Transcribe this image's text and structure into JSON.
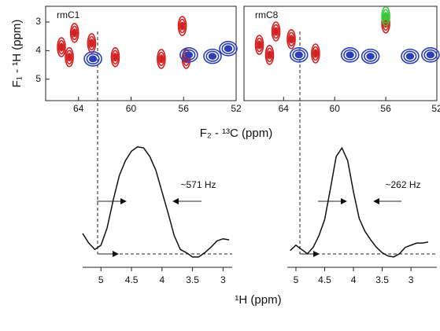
{
  "chart_data": [
    {
      "type": "contour",
      "title": "rmC1",
      "y_label": "F₁ - ¹H  (ppm)",
      "x_label": "F₂ - ¹³C  (ppm)",
      "xlim": [
        66.5,
        52
      ],
      "xticks": [
        64,
        60,
        56,
        52
      ],
      "ylim": [
        5.75,
        2.45
      ],
      "yticks": [
        3,
        4,
        5
      ],
      "series": [
        {
          "color": "#d42020",
          "x": [
            65.3,
            64.7,
            64.3,
            63.0,
            61.2,
            57.7,
            56.1,
            55.8
          ],
          "values": [
            3.88,
            4.23,
            3.38,
            3.74,
            4.23,
            4.29,
            3.14,
            4.29
          ]
        },
        {
          "color": "#2a3fb8",
          "x": [
            62.9,
            55.6,
            53.8,
            52.6
          ],
          "values": [
            4.29,
            4.15,
            4.2,
            3.93
          ]
        }
      ]
    },
    {
      "type": "contour",
      "title": "rmC8",
      "xlim": [
        67.1,
        52
      ],
      "xticks": [
        64,
        60,
        56,
        52
      ],
      "ylim": [
        5.75,
        2.45
      ],
      "series": [
        {
          "color": "#d42020",
          "x": [
            65.9,
            65.1,
            64.6,
            63.4,
            61.5,
            56.0
          ],
          "values": [
            3.8,
            4.15,
            3.33,
            3.6,
            4.1,
            3.05
          ]
        },
        {
          "color": "#2a3fb8",
          "x": [
            62.8,
            58.8,
            57.2,
            54.1,
            52.5
          ],
          "values": [
            4.15,
            4.15,
            4.2,
            4.2,
            4.15
          ]
        },
        {
          "color": "#3cc83c",
          "x": [
            56.0
          ],
          "values": [
            2.8
          ]
        }
      ]
    },
    {
      "type": "line",
      "annotation": "~571 Hz",
      "x_label": "¹H  (ppm)",
      "xlim": [
        5.3,
        2.85
      ],
      "xticks": [
        5.0,
        4.5,
        4.0,
        3.5,
        3.0
      ],
      "ylim": [
        -0.09,
        1.05
      ],
      "x": [
        5.3,
        5.2,
        5.1,
        5.0,
        4.9,
        4.8,
        4.7,
        4.6,
        4.5,
        4.4,
        4.3,
        4.2,
        4.1,
        4.0,
        3.9,
        3.8,
        3.7,
        3.6,
        3.5,
        3.4,
        3.3,
        3.2,
        3.1,
        3.0,
        2.9
      ],
      "values": [
        0.19,
        0.1,
        0.04,
        0.08,
        0.24,
        0.5,
        0.73,
        0.87,
        0.96,
        1.0,
        0.99,
        0.91,
        0.78,
        0.58,
        0.38,
        0.17,
        0.04,
        0.01,
        -0.03,
        -0.03,
        0.01,
        0.06,
        0.12,
        0.14,
        0.13
      ],
      "color": "#111111"
    },
    {
      "type": "line",
      "annotation": "~262 Hz",
      "xlim": [
        5.15,
        2.55
      ],
      "xticks": [
        5.0,
        4.5,
        4.0,
        3.5,
        3.0
      ],
      "ylim": [
        -0.09,
        1.05
      ],
      "x": [
        5.1,
        5.0,
        4.9,
        4.8,
        4.7,
        4.6,
        4.5,
        4.4,
        4.3,
        4.2,
        4.1,
        4.0,
        3.9,
        3.8,
        3.7,
        3.6,
        3.5,
        3.4,
        3.3,
        3.2,
        3.1,
        3.0,
        2.9,
        2.8,
        2.7
      ],
      "values": [
        0.03,
        0.08,
        0.04,
        0,
        0.06,
        0.17,
        0.32,
        0.61,
        0.91,
        0.99,
        0.87,
        0.58,
        0.33,
        0.21,
        0.13,
        0.06,
        0.01,
        -0.02,
        -0.03,
        0,
        0.06,
        0.08,
        0.1,
        0.1,
        0.11
      ],
      "color": "#111111"
    }
  ]
}
